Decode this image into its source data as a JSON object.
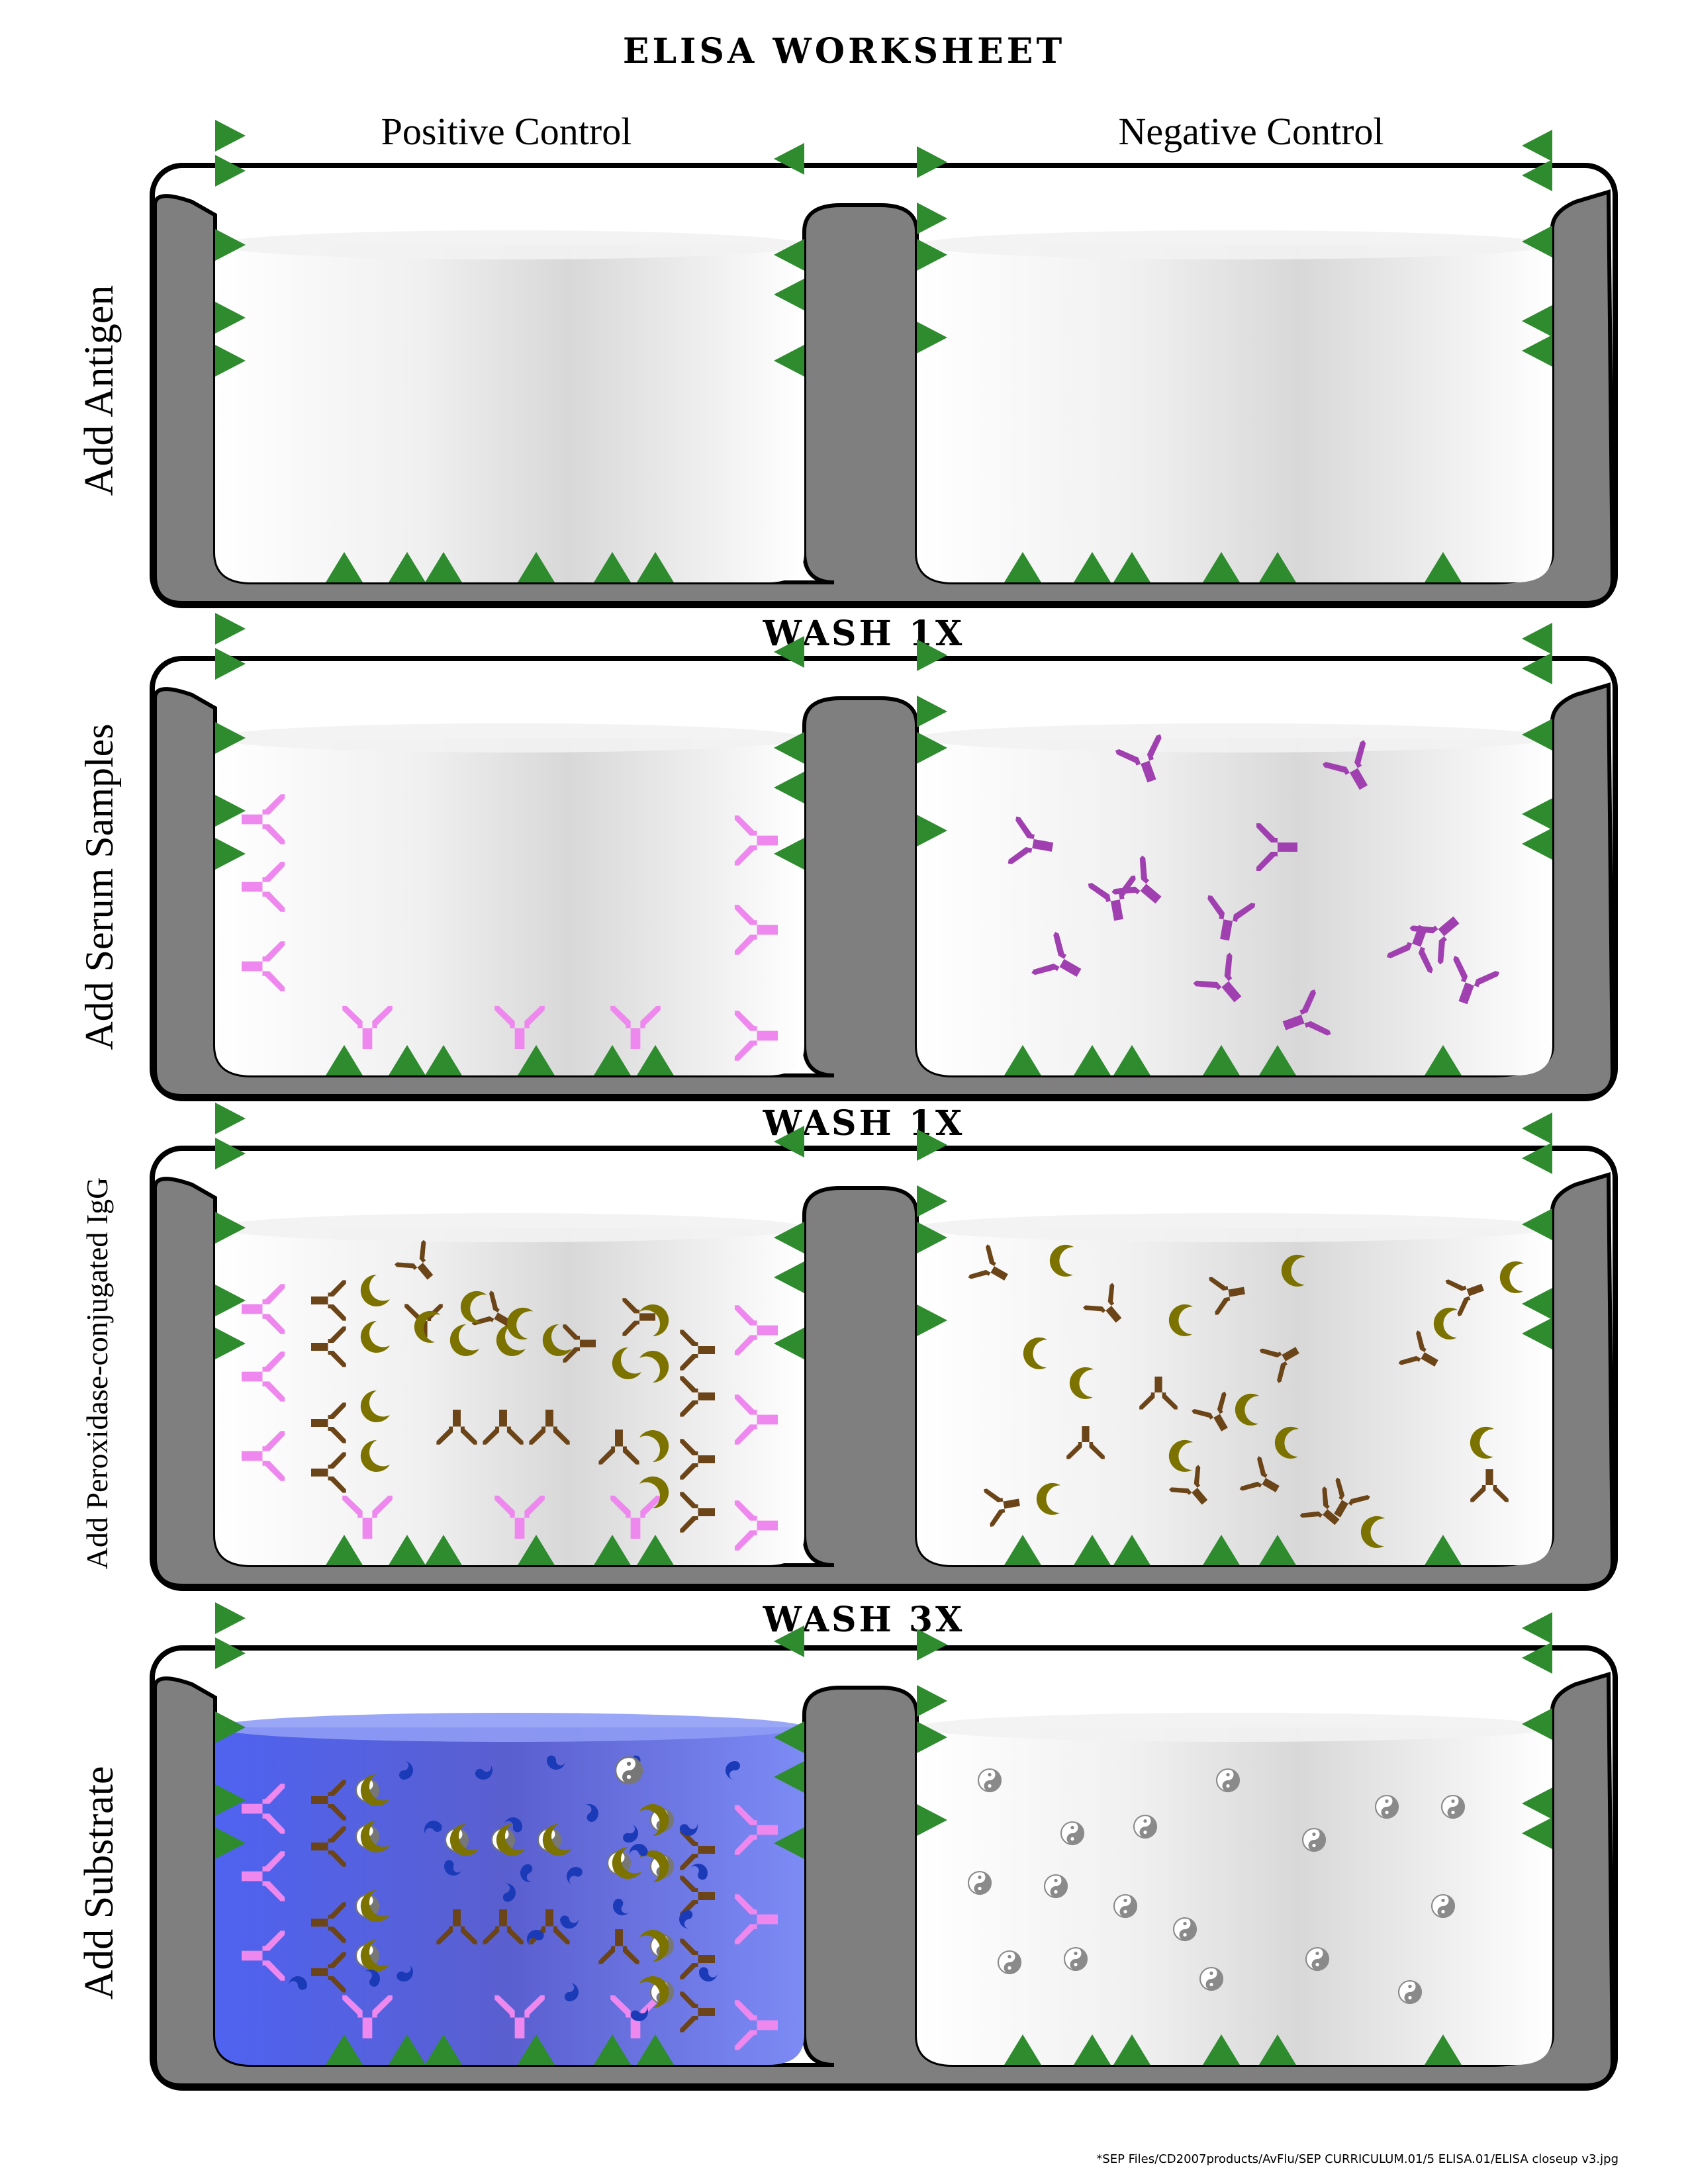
{
  "title": "ELISA WORKSHEET",
  "columns": {
    "positive": "Positive Control",
    "negative": "Negative Control"
  },
  "rows": [
    {
      "label": "Add Antigen"
    },
    {
      "label": "Add Serum Samples"
    },
    {
      "label": "Add Peroxidase-conjugated IgG"
    },
    {
      "label": "Add Substrate"
    }
  ],
  "washes": [
    "WASH 1X",
    "WASH 1X",
    "WASH 3X"
  ],
  "footer": "*SEP Files/CD2007products/AvFlu/SEP CURRICULUM.01/5 ELISA.01/ELISA closeup v3.jpg",
  "colors": {
    "plate": "#7f7f7f",
    "antigen": "#2e8b2e",
    "primary_antibody": "#ee88ee",
    "unbound_antibody": "#a040b0",
    "secondary_antibody": "#6b4418",
    "enzyme": "#7c7200",
    "substrate_fill": "#5a6ef0",
    "product": "#1a3ab8",
    "inactive_substrate": "#8a8a8a"
  },
  "icons": {
    "antigen": "triangle",
    "antibody": "y-shape",
    "enzyme": "crescent",
    "substrate": "yin-yang"
  }
}
